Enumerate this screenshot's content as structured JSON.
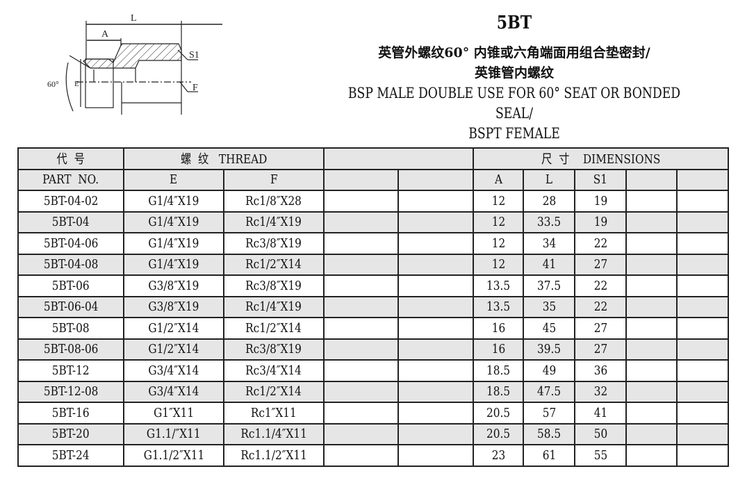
{
  "drawing": {
    "labels": {
      "L": "L",
      "A": "A",
      "S1": "S1",
      "F": "F",
      "E": "E",
      "angle": "60°"
    }
  },
  "title": {
    "model": "5BT",
    "cn_line1": "英管外螺纹60° 内锥或六角端面用组合垫密封/",
    "cn_line2": "英锥管内螺纹",
    "en_line1": "BSP MALE DOUBLE USE FOR 60° SEAT OR BONDED SEAL/",
    "en_line2": "BSPT FEMALE"
  },
  "table": {
    "header": {
      "code_cn": "代  号",
      "part_no": "PART  NO.",
      "thread": "螺  纹   THREAD",
      "dimensions": "尺  寸    DIMENSIONS",
      "E": "E",
      "F": "F",
      "A": "A",
      "L": "L",
      "S1": "S1"
    },
    "rows": [
      {
        "part": "5BT-04-02",
        "E": "G1/4″X19",
        "F": "Rc1/8″X28",
        "A": "12",
        "L": "28",
        "S1": "19"
      },
      {
        "part": "5BT-04",
        "E": "G1/4″X19",
        "F": "Rc1/4″X19",
        "A": "12",
        "L": "33.5",
        "S1": "19"
      },
      {
        "part": "5BT-04-06",
        "E": "G1/4″X19",
        "F": "Rc3/8″X19",
        "A": "12",
        "L": "34",
        "S1": "22"
      },
      {
        "part": "5BT-04-08",
        "E": "G1/4″X19",
        "F": "Rc1/2″X14",
        "A": "12",
        "L": "41",
        "S1": "27"
      },
      {
        "part": "5BT-06",
        "E": "G3/8″X19",
        "F": "Rc3/8″X19",
        "A": "13.5",
        "L": "37.5",
        "S1": "22"
      },
      {
        "part": "5BT-06-04",
        "E": "G3/8″X19",
        "F": "Rc1/4″X19",
        "A": "13.5",
        "L": "35",
        "S1": "22"
      },
      {
        "part": "5BT-08",
        "E": "G1/2″X14",
        "F": "Rc1/2″X14",
        "A": "16",
        "L": "45",
        "S1": "27"
      },
      {
        "part": "5BT-08-06",
        "E": "G1/2″X14",
        "F": "Rc3/8″X19",
        "A": "16",
        "L": "39.5",
        "S1": "27"
      },
      {
        "part": "5BT-12",
        "E": "G3/4″X14",
        "F": "Rc3/4″X14",
        "A": "18.5",
        "L": "49",
        "S1": "36"
      },
      {
        "part": "5BT-12-08",
        "E": "G3/4″X14",
        "F": "Rc1/2″X14",
        "A": "18.5",
        "L": "47.5",
        "S1": "32"
      },
      {
        "part": "5BT-16",
        "E": "G1″X11",
        "F": "Rc1″X11",
        "A": "20.5",
        "L": "57",
        "S1": "41"
      },
      {
        "part": "5BT-20",
        "E": "G1.1/″X11",
        "F": "Rc1.1/4″X11",
        "A": "20.5",
        "L": "58.5",
        "S1": "50"
      },
      {
        "part": "5BT-24",
        "E": "G1.1/2″X11",
        "F": "Rc1.1/2″X11",
        "A": "23",
        "L": "61",
        "S1": "55"
      }
    ]
  }
}
